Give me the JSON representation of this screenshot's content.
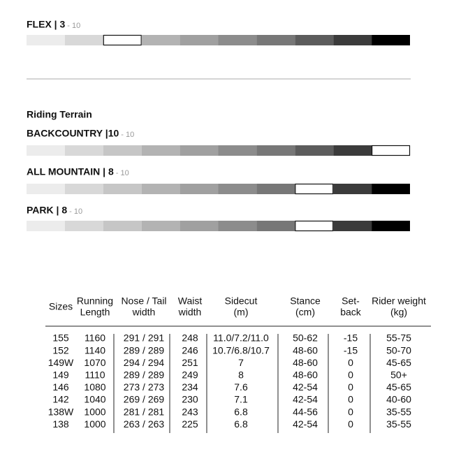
{
  "ratings": [
    {
      "label": "FLEX | 3",
      "scale": "- 10",
      "rating": 3
    },
    {
      "label": "BACKCOUNTRY |10",
      "scale": "- 10",
      "rating": 10
    },
    {
      "label": "ALL MOUNTAIN | 8",
      "scale": "- 10",
      "rating": 8
    },
    {
      "label": "PARK | 8",
      "scale": "- 10",
      "rating": 8
    }
  ],
  "terrain_heading": "Riding Terrain",
  "table": {
    "headers": [
      [
        "Sizes"
      ],
      [
        "Running",
        "Length"
      ],
      [
        "Nose / Tail",
        "width"
      ],
      [
        "Waist",
        "width"
      ],
      [
        "Sidecut",
        "(m)"
      ],
      [
        "Stance",
        "(cm)"
      ],
      [
        "Set-",
        "back"
      ],
      [
        "Rider weight",
        "(kg)"
      ]
    ],
    "rows": [
      [
        "155",
        "1160",
        "291 / 291",
        "248",
        "11.0/7.2/11.0",
        "50-62",
        "-15",
        "55-75"
      ],
      [
        "152",
        "1140",
        "289 / 289",
        "246",
        "10.7/6.8/10.7",
        "48-60",
        "-15",
        "50-70"
      ],
      [
        "149W",
        "1070",
        "294 / 294",
        "251",
        "7",
        "48-60",
        "0",
        "45-65"
      ],
      [
        "149",
        "1110",
        "289 / 289",
        "249",
        "8",
        "48-60",
        "0",
        "50+"
      ],
      [
        "146",
        "1080",
        "273 / 273",
        "234",
        "7.6",
        "42-54",
        "0",
        "45-65"
      ],
      [
        "142",
        "1040",
        "269  / 269",
        "230",
        "7.1",
        "42-54",
        "0",
        "40-60"
      ],
      [
        "138W",
        "1000",
        "281 / 281",
        "243",
        "6.8",
        "44-56",
        "0",
        "35-55"
      ],
      [
        "138",
        "1000",
        "263  / 263",
        "225",
        "6.8",
        "42-54",
        "0",
        "35-55"
      ]
    ]
  }
}
